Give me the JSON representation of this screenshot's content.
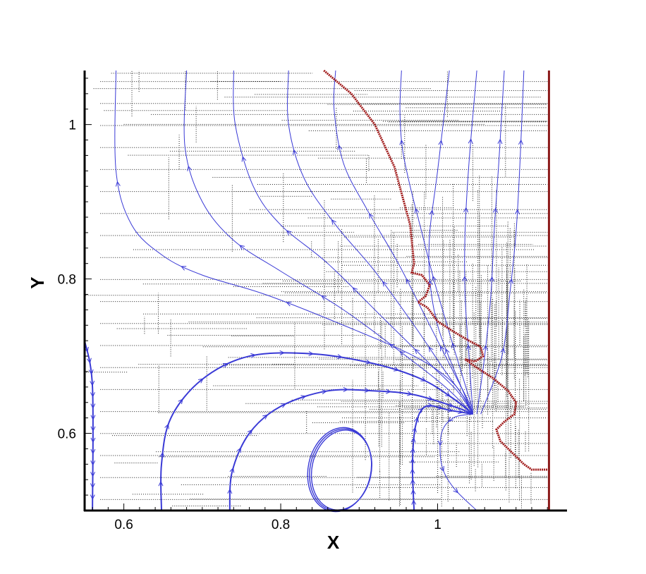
{
  "chart_data": {
    "type": "line",
    "title": "",
    "xlabel": "X",
    "ylabel": "Y",
    "xlim": [
      0.55,
      1.165
    ],
    "ylim": [
      0.5,
      1.07
    ],
    "xticks": [
      0.6,
      0.8,
      1.0
    ],
    "xtick_labels": [
      "0.6",
      "0.8",
      "1"
    ],
    "yticks": [
      0.6,
      0.8,
      1.0
    ],
    "ytick_labels": [
      "0.6",
      "0.8",
      "1"
    ],
    "grid": "mesh",
    "legend": "none",
    "colors": {
      "streamlines": "#3a3ad6",
      "interface": "#a01a1a",
      "wall": "#8b1a1a",
      "mesh": "#222222"
    },
    "wall": {
      "x": 1.142
    },
    "interface": [
      [
        0.855,
        1.07
      ],
      [
        0.89,
        1.04
      ],
      [
        0.92,
        1.0
      ],
      [
        0.945,
        0.945
      ],
      [
        0.965,
        0.87
      ],
      [
        0.97,
        0.82
      ],
      [
        0.967,
        0.808
      ],
      [
        0.98,
        0.805
      ],
      [
        0.99,
        0.792
      ],
      [
        0.985,
        0.778
      ],
      [
        0.975,
        0.77
      ],
      [
        0.987,
        0.763
      ],
      [
        1.0,
        0.745
      ],
      [
        1.02,
        0.732
      ],
      [
        1.04,
        0.72
      ],
      [
        1.055,
        0.712
      ],
      [
        1.058,
        0.7
      ],
      [
        1.048,
        0.693
      ],
      [
        1.035,
        0.696
      ],
      [
        1.05,
        0.685
      ],
      [
        1.07,
        0.672
      ],
      [
        1.09,
        0.655
      ],
      [
        1.1,
        0.64
      ],
      [
        1.098,
        0.625
      ],
      [
        1.085,
        0.615
      ],
      [
        1.075,
        0.605
      ],
      [
        1.08,
        0.59
      ],
      [
        1.095,
        0.575
      ],
      [
        1.11,
        0.56
      ],
      [
        1.12,
        0.553
      ],
      [
        1.142,
        0.553
      ]
    ],
    "streamlines": [
      {
        "points": [
          [
            0.59,
            1.07
          ],
          [
            0.59,
            0.94
          ],
          [
            0.61,
            0.87
          ],
          [
            0.65,
            0.83
          ],
          [
            0.7,
            0.805
          ],
          [
            0.78,
            0.78
          ],
          [
            0.88,
            0.74
          ],
          [
            0.97,
            0.7
          ],
          [
            1.02,
            0.665
          ],
          [
            1.045,
            0.625
          ]
        ],
        "arrows": "up",
        "width": 1
      },
      {
        "points": [
          [
            0.68,
            1.07
          ],
          [
            0.678,
            0.97
          ],
          [
            0.7,
            0.9
          ],
          [
            0.74,
            0.85
          ],
          [
            0.8,
            0.81
          ],
          [
            0.88,
            0.76
          ],
          [
            0.96,
            0.7
          ],
          [
            1.01,
            0.66
          ],
          [
            1.045,
            0.625
          ]
        ],
        "arrows": "up",
        "width": 1
      },
      {
        "points": [
          [
            0.74,
            1.07
          ],
          [
            0.742,
            1.0
          ],
          [
            0.765,
            0.92
          ],
          [
            0.8,
            0.87
          ],
          [
            0.86,
            0.82
          ],
          [
            0.93,
            0.75
          ],
          [
            0.99,
            0.69
          ],
          [
            1.025,
            0.655
          ],
          [
            1.045,
            0.625
          ]
        ],
        "arrows": "up",
        "width": 1
      },
      {
        "points": [
          [
            0.81,
            1.07
          ],
          [
            0.81,
            1.0
          ],
          [
            0.83,
            0.93
          ],
          [
            0.87,
            0.87
          ],
          [
            0.92,
            0.81
          ],
          [
            0.97,
            0.74
          ],
          [
            1.01,
            0.68
          ],
          [
            1.035,
            0.645
          ],
          [
            1.045,
            0.625
          ]
        ],
        "arrows": "up",
        "width": 1
      },
      {
        "points": [
          [
            0.87,
            1.07
          ],
          [
            0.868,
            1.02
          ],
          [
            0.88,
            0.95
          ],
          [
            0.91,
            0.89
          ],
          [
            0.95,
            0.82
          ],
          [
            0.985,
            0.75
          ],
          [
            1.02,
            0.68
          ],
          [
            1.04,
            0.64
          ],
          [
            1.045,
            0.625
          ]
        ],
        "arrows": "up",
        "width": 1
      },
      {
        "points": [
          [
            0.954,
            1.07
          ],
          [
            0.952,
            1.02
          ],
          [
            0.955,
            0.97
          ],
          [
            0.965,
            0.92
          ],
          [
            0.98,
            0.86
          ],
          [
            0.995,
            0.8
          ],
          [
            1.015,
            0.73
          ],
          [
            1.03,
            0.68
          ],
          [
            1.045,
            0.63
          ]
        ],
        "arrows": "up",
        "width": 1
      },
      {
        "points": [
          [
            1.045,
            0.625
          ],
          [
            1.022,
            0.68
          ],
          [
            1.0,
            0.74
          ],
          [
            0.99,
            0.8
          ],
          [
            0.99,
            0.86
          ],
          [
            1.0,
            0.94
          ],
          [
            1.015,
            1.07
          ]
        ],
        "arrows": "up",
        "width": 1
      },
      {
        "points": [
          [
            1.045,
            0.625
          ],
          [
            1.04,
            0.7
          ],
          [
            1.035,
            0.78
          ],
          [
            1.035,
            0.86
          ],
          [
            1.04,
            0.95
          ],
          [
            1.05,
            1.07
          ]
        ],
        "arrows": "up",
        "width": 1
      },
      {
        "points": [
          [
            1.05,
            0.625
          ],
          [
            1.06,
            0.7
          ],
          [
            1.068,
            0.78
          ],
          [
            1.072,
            0.86
          ],
          [
            1.078,
            0.95
          ],
          [
            1.085,
            1.07
          ]
        ],
        "arrows": "up",
        "width": 1
      },
      {
        "points": [
          [
            1.055,
            0.625
          ],
          [
            1.082,
            0.7
          ],
          [
            1.092,
            0.78
          ],
          [
            1.1,
            0.86
          ],
          [
            1.105,
            0.95
          ],
          [
            1.11,
            1.07
          ]
        ],
        "arrows": "up",
        "width": 1
      },
      {
        "points": [
          [
            0.55,
            0.72
          ],
          [
            0.56,
            0.66
          ],
          [
            0.56,
            0.5
          ]
        ],
        "arrows": "down",
        "width": 2
      },
      {
        "points": [
          [
            0.648,
            0.5
          ],
          [
            0.648,
            0.56
          ],
          [
            0.66,
            0.62
          ],
          [
            0.7,
            0.67
          ],
          [
            0.76,
            0.7
          ],
          [
            0.84,
            0.703
          ],
          [
            0.92,
            0.69
          ],
          [
            0.98,
            0.67
          ],
          [
            1.02,
            0.645
          ],
          [
            1.045,
            0.625
          ]
        ],
        "arrows": "forward",
        "width": 2
      },
      {
        "points": [
          [
            0.735,
            0.5
          ],
          [
            0.738,
            0.55
          ],
          [
            0.76,
            0.6
          ],
          [
            0.8,
            0.635
          ],
          [
            0.86,
            0.655
          ],
          [
            0.92,
            0.655
          ],
          [
            0.97,
            0.65
          ],
          [
            1.02,
            0.635
          ],
          [
            1.045,
            0.625
          ]
        ],
        "arrows": "forward",
        "width": 2
      },
      {
        "points": [
          [
            0.97,
            0.5
          ],
          [
            0.968,
            0.56
          ],
          [
            0.972,
            0.61
          ],
          [
            0.985,
            0.635
          ],
          [
            1.015,
            0.63
          ],
          [
            1.045,
            0.625
          ]
        ],
        "arrows": "up",
        "width": 2
      },
      {
        "points": [
          [
            1.045,
            0.625
          ],
          [
            1.02,
            0.62
          ],
          [
            1.005,
            0.6
          ],
          [
            1.005,
            0.56
          ],
          [
            1.02,
            0.53
          ],
          [
            1.05,
            0.5
          ]
        ],
        "arrows": "down",
        "width": 1
      }
    ],
    "vortex": {
      "cx": 0.875,
      "cy": 0.553,
      "rx": 0.04,
      "ry": 0.055
    }
  }
}
